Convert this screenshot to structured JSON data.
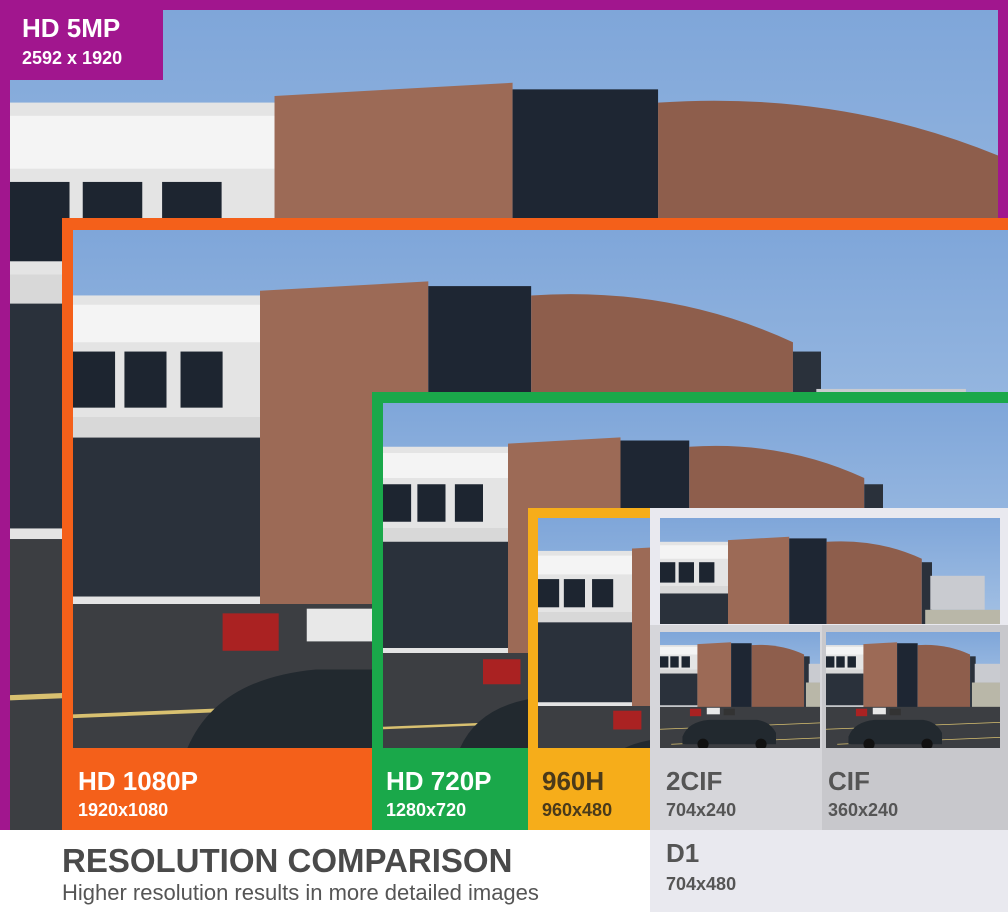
{
  "panels": [
    {
      "label": "HD 5MP",
      "resolution": "2592 x 1920"
    },
    {
      "label": "HD 1080P",
      "resolution": "1920x1080"
    },
    {
      "label": "HD 720P",
      "resolution": "1280x720"
    },
    {
      "label": "960H",
      "resolution": "960x480"
    },
    {
      "label": "2CIF",
      "resolution": "704x240"
    },
    {
      "label": "CIF",
      "resolution": "360x240"
    },
    {
      "label": "D1",
      "resolution": "704x480"
    }
  ],
  "footer": {
    "title": "RESOLUTION COMPARISON",
    "subtitle": "Higher resolution results in more detailed images"
  }
}
